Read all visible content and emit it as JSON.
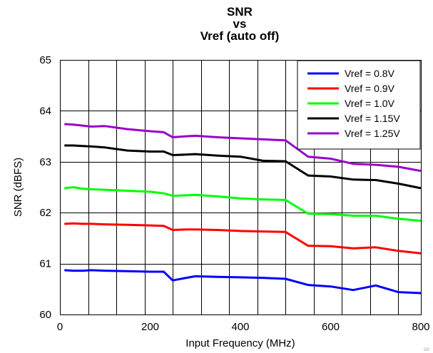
{
  "chart_data": {
    "type": "line",
    "title_lines": [
      "SNR",
      "vs",
      "Vref (auto off)"
    ],
    "xlabel": "Input Frequency (MHz)",
    "ylabel": "SNR (dBFS)",
    "xlim": [
      0,
      800
    ],
    "ylim": [
      60,
      65
    ],
    "xticks": [
      0,
      200,
      400,
      600,
      800
    ],
    "yticks": [
      60,
      61,
      62,
      63,
      64,
      65
    ],
    "grid": true,
    "legend_position": "top-right",
    "corner_label": "G0",
    "series": [
      {
        "name": "Vref = 0.8V",
        "color": "#0000ff",
        "x": [
          10,
          30,
          50,
          70,
          100,
          150,
          200,
          230,
          250,
          280,
          300,
          350,
          400,
          450,
          500,
          550,
          600,
          650,
          700,
          750,
          800
        ],
        "y": [
          60.87,
          60.86,
          60.86,
          60.87,
          60.86,
          60.85,
          60.84,
          60.84,
          60.67,
          60.72,
          60.75,
          60.74,
          60.73,
          60.72,
          60.7,
          60.58,
          60.55,
          60.48,
          60.57,
          60.44,
          60.42
        ]
      },
      {
        "name": "Vref = 0.9V",
        "color": "#ff0000",
        "x": [
          10,
          30,
          50,
          70,
          100,
          150,
          200,
          230,
          250,
          280,
          300,
          350,
          400,
          450,
          500,
          550,
          600,
          650,
          700,
          750,
          800
        ],
        "y": [
          61.78,
          61.79,
          61.78,
          61.78,
          61.77,
          61.76,
          61.75,
          61.74,
          61.66,
          61.67,
          61.67,
          61.66,
          61.64,
          61.63,
          61.62,
          61.35,
          61.34,
          61.3,
          61.32,
          61.25,
          61.2
        ]
      },
      {
        "name": "Vref = 1.0V",
        "color": "#00ff00",
        "x": [
          10,
          30,
          50,
          70,
          100,
          150,
          200,
          230,
          250,
          280,
          300,
          350,
          400,
          450,
          500,
          550,
          600,
          650,
          700,
          750,
          800
        ],
        "y": [
          62.48,
          62.5,
          62.47,
          62.46,
          62.45,
          62.43,
          62.41,
          62.38,
          62.33,
          62.34,
          62.35,
          62.32,
          62.28,
          62.26,
          62.25,
          61.98,
          61.97,
          61.94,
          61.94,
          61.88,
          61.84
        ]
      },
      {
        "name": "Vref = 1.15V",
        "color": "#000000",
        "x": [
          10,
          30,
          50,
          70,
          100,
          150,
          200,
          230,
          250,
          280,
          300,
          350,
          400,
          450,
          500,
          550,
          600,
          650,
          700,
          750,
          800
        ],
        "y": [
          63.32,
          63.32,
          63.31,
          63.3,
          63.28,
          63.22,
          63.2,
          63.2,
          63.13,
          63.14,
          63.15,
          63.12,
          63.1,
          63.02,
          63.01,
          62.73,
          62.71,
          62.65,
          62.64,
          62.57,
          62.48
        ]
      },
      {
        "name": "Vref = 1.25V",
        "color": "#9900cc",
        "x": [
          10,
          30,
          50,
          70,
          100,
          150,
          200,
          230,
          250,
          280,
          300,
          350,
          400,
          450,
          500,
          550,
          600,
          650,
          700,
          750,
          800
        ],
        "y": [
          63.74,
          63.73,
          63.71,
          63.69,
          63.7,
          63.64,
          63.6,
          63.58,
          63.48,
          63.5,
          63.51,
          63.48,
          63.46,
          63.44,
          63.42,
          63.1,
          63.06,
          62.96,
          62.94,
          62.9,
          62.82
        ]
      }
    ]
  }
}
